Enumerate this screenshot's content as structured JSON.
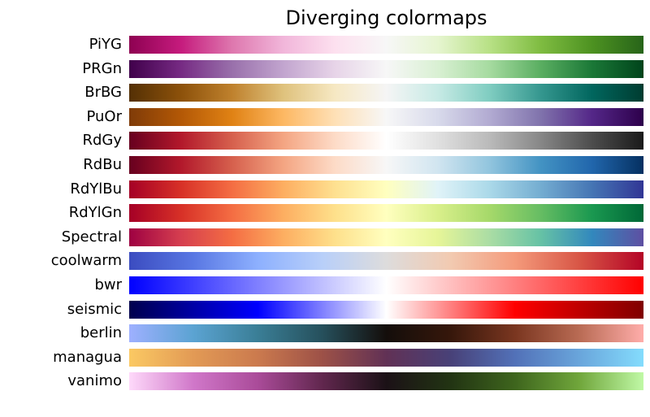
{
  "title": "Diverging colormaps",
  "chart_data": {
    "type": "heatmap",
    "variant": "colormap_reference_strips",
    "title": "Diverging colormaps",
    "orientation": "horizontal",
    "gradient_range": [
      0,
      1
    ],
    "legend_position": "left-row-labels",
    "grid": false,
    "colormaps": [
      {
        "name": "PiYG",
        "stops": [
          "#8e0152",
          "#c51b7d",
          "#de77ae",
          "#f1b6da",
          "#fde0ef",
          "#f7f7f7",
          "#e6f5d0",
          "#b8e186",
          "#7fbc41",
          "#4d9221",
          "#276419"
        ]
      },
      {
        "name": "PRGn",
        "stops": [
          "#40004b",
          "#762a83",
          "#9970ab",
          "#c2a5cf",
          "#e7d4e8",
          "#f7f7f7",
          "#d9f0d3",
          "#a6dba0",
          "#5aae61",
          "#1b7837",
          "#00441b"
        ]
      },
      {
        "name": "BrBG",
        "stops": [
          "#543005",
          "#8c510a",
          "#bf812d",
          "#dfc27d",
          "#f6e8c3",
          "#f5f5f5",
          "#c7eae5",
          "#80cdc1",
          "#35978f",
          "#01665e",
          "#003c30"
        ]
      },
      {
        "name": "PuOr",
        "stops": [
          "#7f3b08",
          "#b35806",
          "#e08214",
          "#fdb863",
          "#fee0b6",
          "#f7f7f7",
          "#d8daeb",
          "#b2abd2",
          "#8073ac",
          "#542788",
          "#2d004b"
        ]
      },
      {
        "name": "RdGy",
        "stops": [
          "#67001f",
          "#b2182b",
          "#d6604d",
          "#f4a582",
          "#fddbc7",
          "#ffffff",
          "#e0e0e0",
          "#bababa",
          "#878787",
          "#4d4d4d",
          "#1a1a1a"
        ]
      },
      {
        "name": "RdBu",
        "stops": [
          "#67001f",
          "#b2182b",
          "#d6604d",
          "#f4a582",
          "#fddbc7",
          "#f7f7f7",
          "#d1e5f0",
          "#92c5de",
          "#4393c3",
          "#2166ac",
          "#053061"
        ]
      },
      {
        "name": "RdYlBu",
        "stops": [
          "#a50026",
          "#d73027",
          "#f46d43",
          "#fdae61",
          "#fee090",
          "#ffffbf",
          "#e0f3f8",
          "#abd9e9",
          "#74add1",
          "#4575b4",
          "#313695"
        ]
      },
      {
        "name": "RdYlGn",
        "stops": [
          "#a50026",
          "#d73027",
          "#f46d43",
          "#fdae61",
          "#fee08b",
          "#ffffbf",
          "#d9ef8b",
          "#a6d96a",
          "#66bd63",
          "#1a9850",
          "#006837"
        ]
      },
      {
        "name": "Spectral",
        "stops": [
          "#9e0142",
          "#d53e4f",
          "#f46d43",
          "#fdae61",
          "#fee08b",
          "#ffffbf",
          "#e6f598",
          "#abdda4",
          "#66c2a5",
          "#3288bd",
          "#5e4fa2"
        ]
      },
      {
        "name": "coolwarm",
        "stops": [
          "#3b4cc0",
          "#5977e3",
          "#8db0fe",
          "#b8cff9",
          "#dddcdc",
          "#f2cab1",
          "#f49a7b",
          "#d85646",
          "#b40426"
        ]
      },
      {
        "name": "bwr",
        "stops": [
          "#0000ff",
          "#ffffff",
          "#ff0000"
        ]
      },
      {
        "name": "seismic",
        "stops": [
          "#00004d",
          "#0000ff",
          "#ffffff",
          "#ff0000",
          "#800000"
        ]
      },
      {
        "name": "berlin",
        "stops": [
          "#9eb0ff",
          "#5ba3d2",
          "#3a7e96",
          "#26505c",
          "#140e0b",
          "#36170b",
          "#7a3620",
          "#b96b54",
          "#ffadaa"
        ]
      },
      {
        "name": "managua",
        "stops": [
          "#fbc963",
          "#e29a55",
          "#cb7a4e",
          "#9d5147",
          "#613155",
          "#484178",
          "#5271b8",
          "#69a5db",
          "#84dcfd"
        ]
      },
      {
        "name": "vanimo",
        "stops": [
          "#fed9fa",
          "#d077c9",
          "#aa4b99",
          "#61274e",
          "#1b1116",
          "#223413",
          "#3e651d",
          "#70a63b",
          "#c0f9a6"
        ]
      }
    ]
  }
}
